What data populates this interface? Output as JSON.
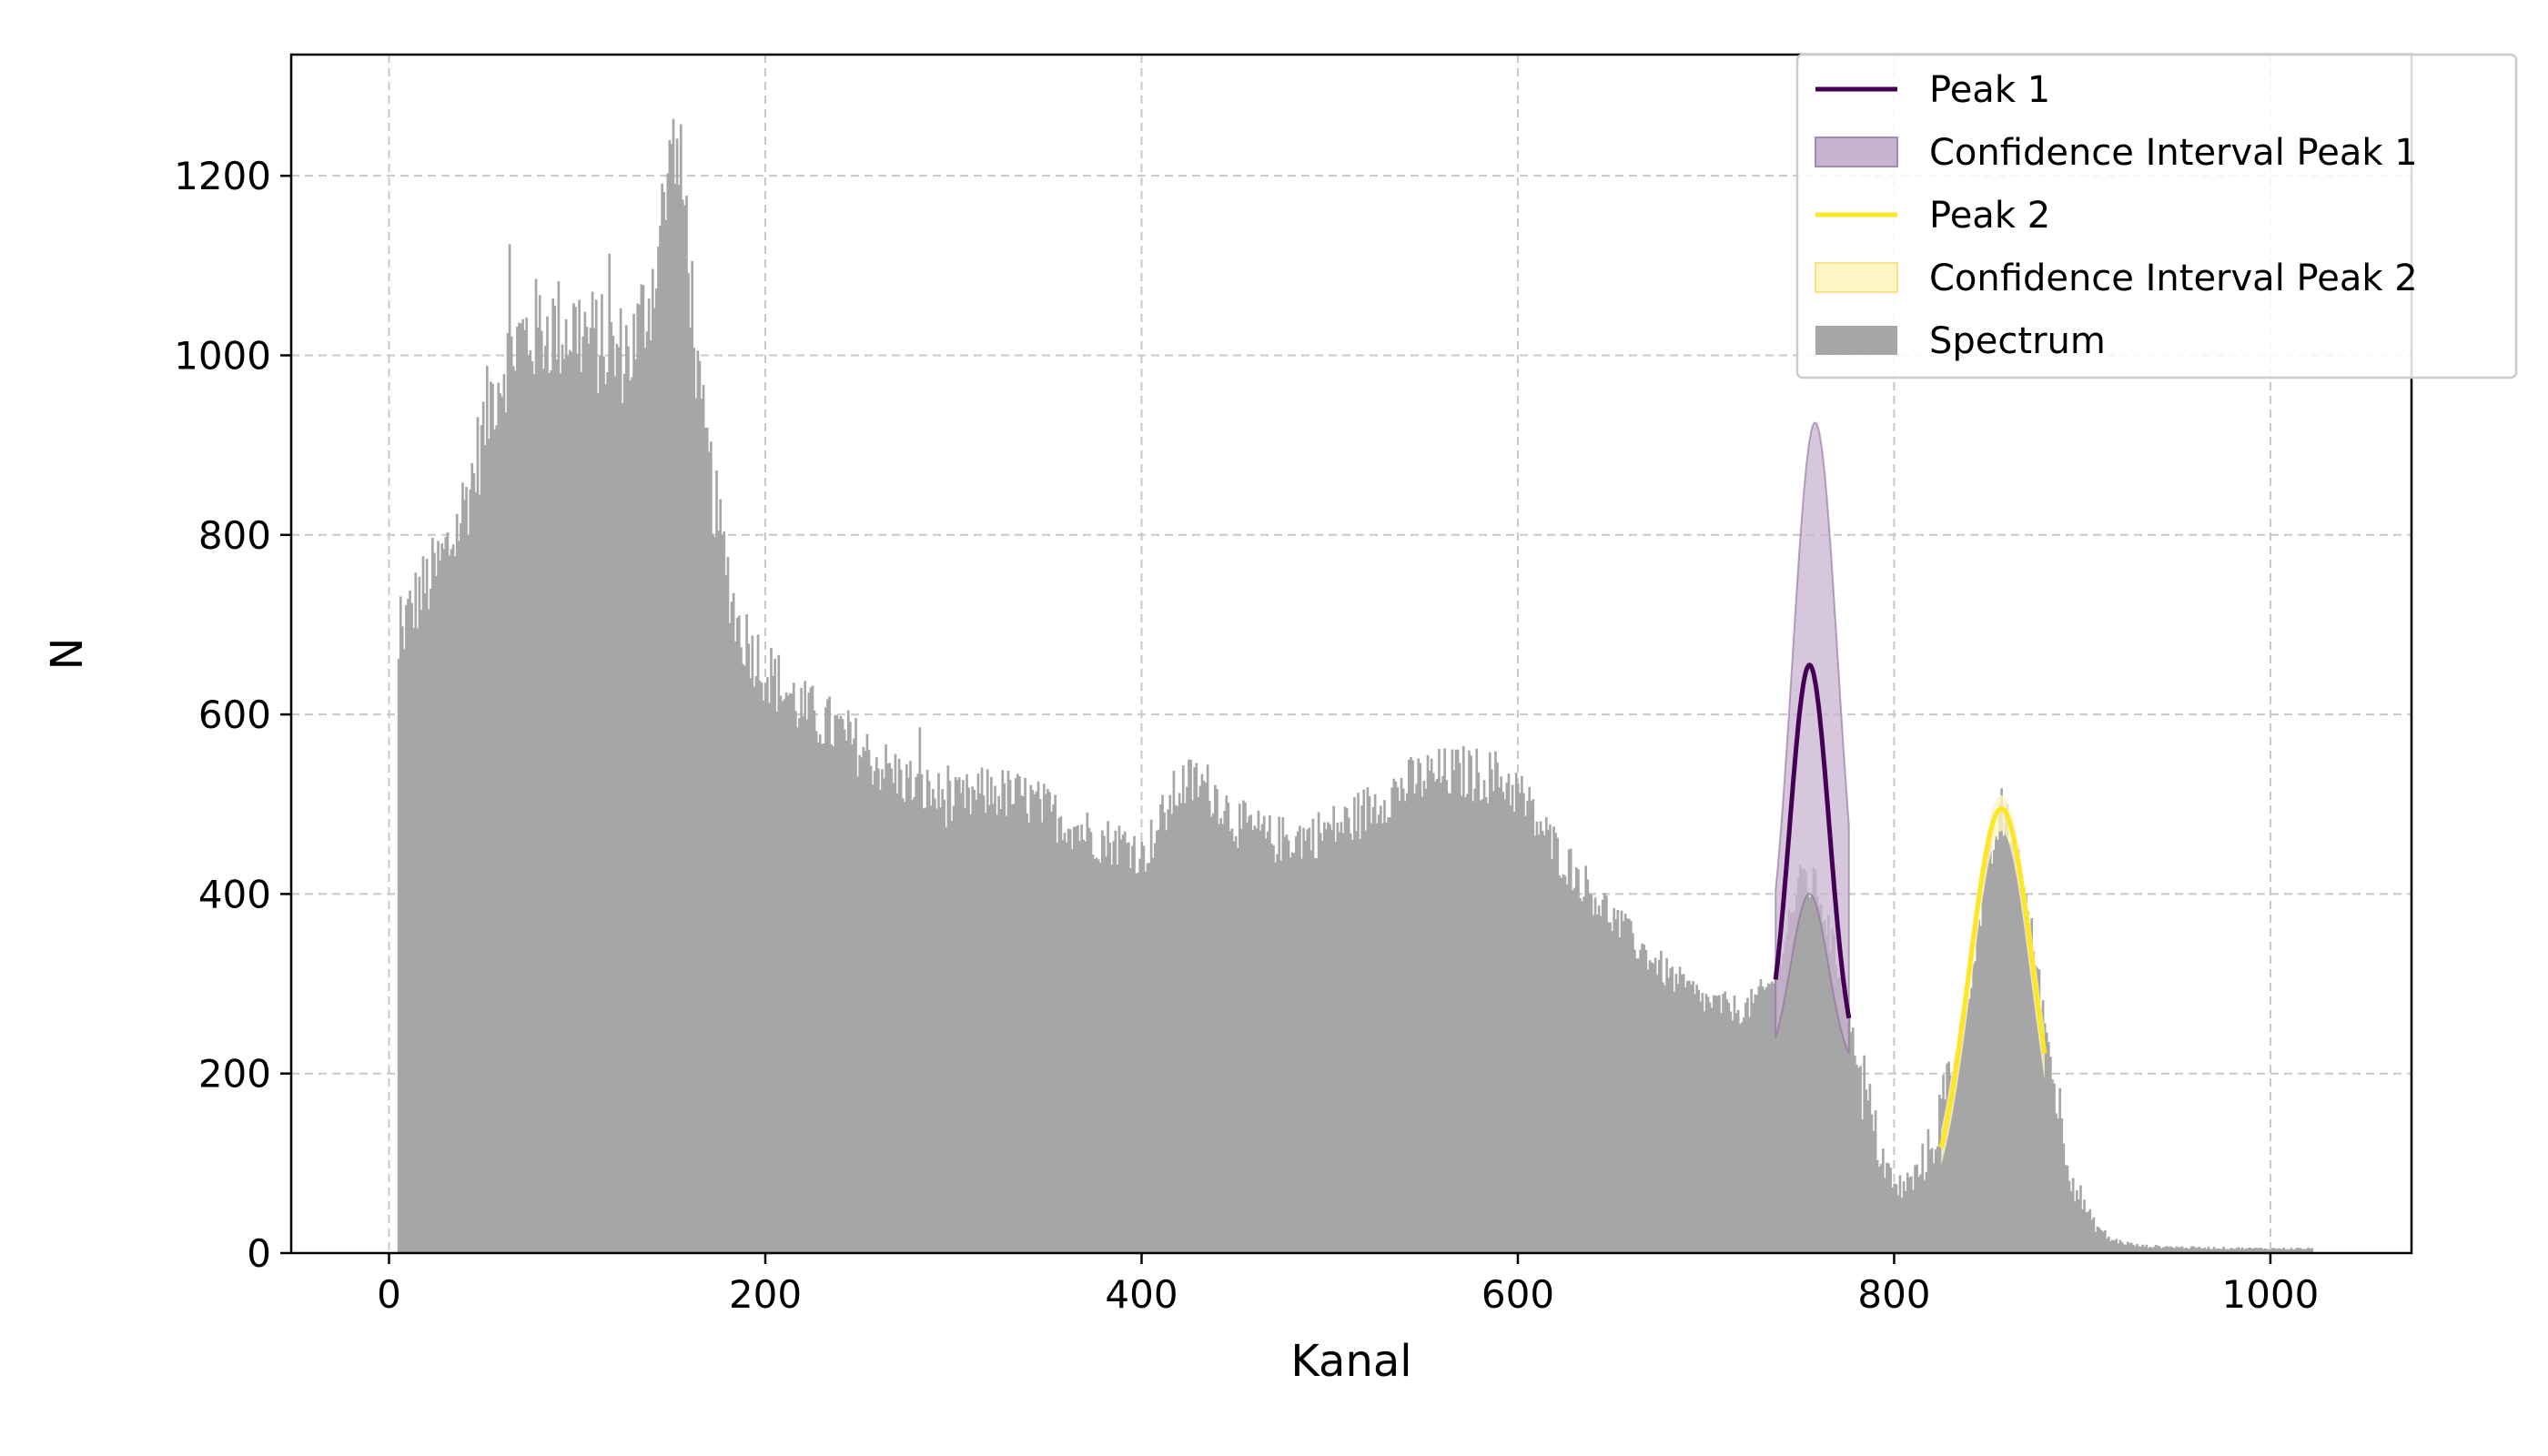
{
  "chart_data": {
    "type": "bar",
    "xlabel": "Kanal",
    "ylabel": "N",
    "xlim": [
      -52,
      1075
    ],
    "ylim": [
      0,
      1335
    ],
    "xticks": [
      0,
      200,
      400,
      600,
      800,
      1000
    ],
    "yticks": [
      0,
      200,
      400,
      600,
      800,
      1000,
      1200
    ],
    "grid": true,
    "legend_position": "top-right",
    "colors": {
      "spectrum": "#a6a6a6",
      "peak1": "#440154",
      "peak1_ci": "#c8b4d0",
      "peak2": "#fde725",
      "peak2_ci": "#fdf5c4"
    },
    "legend": [
      {
        "label": "Peak 1",
        "kind": "line",
        "color": "#440154"
      },
      {
        "label": "Confidence Interval Peak 1",
        "kind": "patch",
        "color": "#c8b4d0"
      },
      {
        "label": "Peak 2",
        "kind": "line",
        "color": "#fde725"
      },
      {
        "label": "Confidence Interval Peak 2",
        "kind": "patch",
        "color": "#fdf5c4"
      },
      {
        "label": "Spectrum",
        "kind": "patch",
        "color": "#a6a6a6"
      }
    ],
    "spectrum": {
      "name": "Spectrum",
      "channel_range": [
        4,
        1022
      ],
      "envelope": [
        [
          4,
          0
        ],
        [
          5,
          650
        ],
        [
          8,
          700
        ],
        [
          15,
          730
        ],
        [
          25,
          760
        ],
        [
          35,
          800
        ],
        [
          45,
          870
        ],
        [
          55,
          960
        ],
        [
          65,
          1010
        ],
        [
          80,
          1030
        ],
        [
          100,
          1030
        ],
        [
          120,
          1000
        ],
        [
          130,
          1010
        ],
        [
          140,
          1080
        ],
        [
          148,
          1190
        ],
        [
          152,
          1230
        ],
        [
          158,
          1150
        ],
        [
          165,
          940
        ],
        [
          175,
          810
        ],
        [
          185,
          700
        ],
        [
          200,
          650
        ],
        [
          220,
          605
        ],
        [
          240,
          580
        ],
        [
          260,
          545
        ],
        [
          280,
          520
        ],
        [
          300,
          500
        ],
        [
          320,
          515
        ],
        [
          340,
          505
        ],
        [
          360,
          480
        ],
        [
          380,
          460
        ],
        [
          395,
          455
        ],
        [
          400,
          440
        ],
        [
          410,
          480
        ],
        [
          420,
          520
        ],
        [
          430,
          525
        ],
        [
          440,
          510
        ],
        [
          450,
          480
        ],
        [
          470,
          460
        ],
        [
          490,
          465
        ],
        [
          510,
          480
        ],
        [
          530,
          510
        ],
        [
          550,
          530
        ],
        [
          570,
          535
        ],
        [
          590,
          530
        ],
        [
          600,
          515
        ],
        [
          610,
          480
        ],
        [
          620,
          450
        ],
        [
          640,
          400
        ],
        [
          660,
          350
        ],
        [
          680,
          310
        ],
        [
          700,
          280
        ],
        [
          720,
          270
        ],
        [
          735,
          300
        ],
        [
          745,
          380
        ],
        [
          752,
          420
        ],
        [
          760,
          400
        ],
        [
          770,
          320
        ],
        [
          780,
          220
        ],
        [
          790,
          130
        ],
        [
          800,
          70
        ],
        [
          810,
          80
        ],
        [
          820,
          120
        ],
        [
          830,
          200
        ],
        [
          840,
          300
        ],
        [
          850,
          430
        ],
        [
          857,
          490
        ],
        [
          865,
          450
        ],
        [
          875,
          330
        ],
        [
          885,
          190
        ],
        [
          895,
          80
        ],
        [
          905,
          35
        ],
        [
          915,
          15
        ],
        [
          930,
          8
        ],
        [
          960,
          6
        ],
        [
          1000,
          5
        ],
        [
          1022,
          5
        ]
      ]
    },
    "peak1": {
      "name": "Peak 1",
      "x_range": [
        737,
        776
      ],
      "center": 755,
      "amplitude": 655,
      "sigma": 10.5,
      "ci_upper_amplitude": 915,
      "ci_upper_center": 758,
      "ci_upper_sigma": 12,
      "ci_lower_center": 755,
      "ci_lower_amplitude": 400,
      "ci_lower_sigma": 10
    },
    "peak2": {
      "name": "Peak 2",
      "x_range": [
        825,
        880
      ],
      "center": 857,
      "amplitude": 495,
      "sigma": 17,
      "ci_upper_amplitude": 510,
      "ci_lower_amplitude": 470
    }
  }
}
